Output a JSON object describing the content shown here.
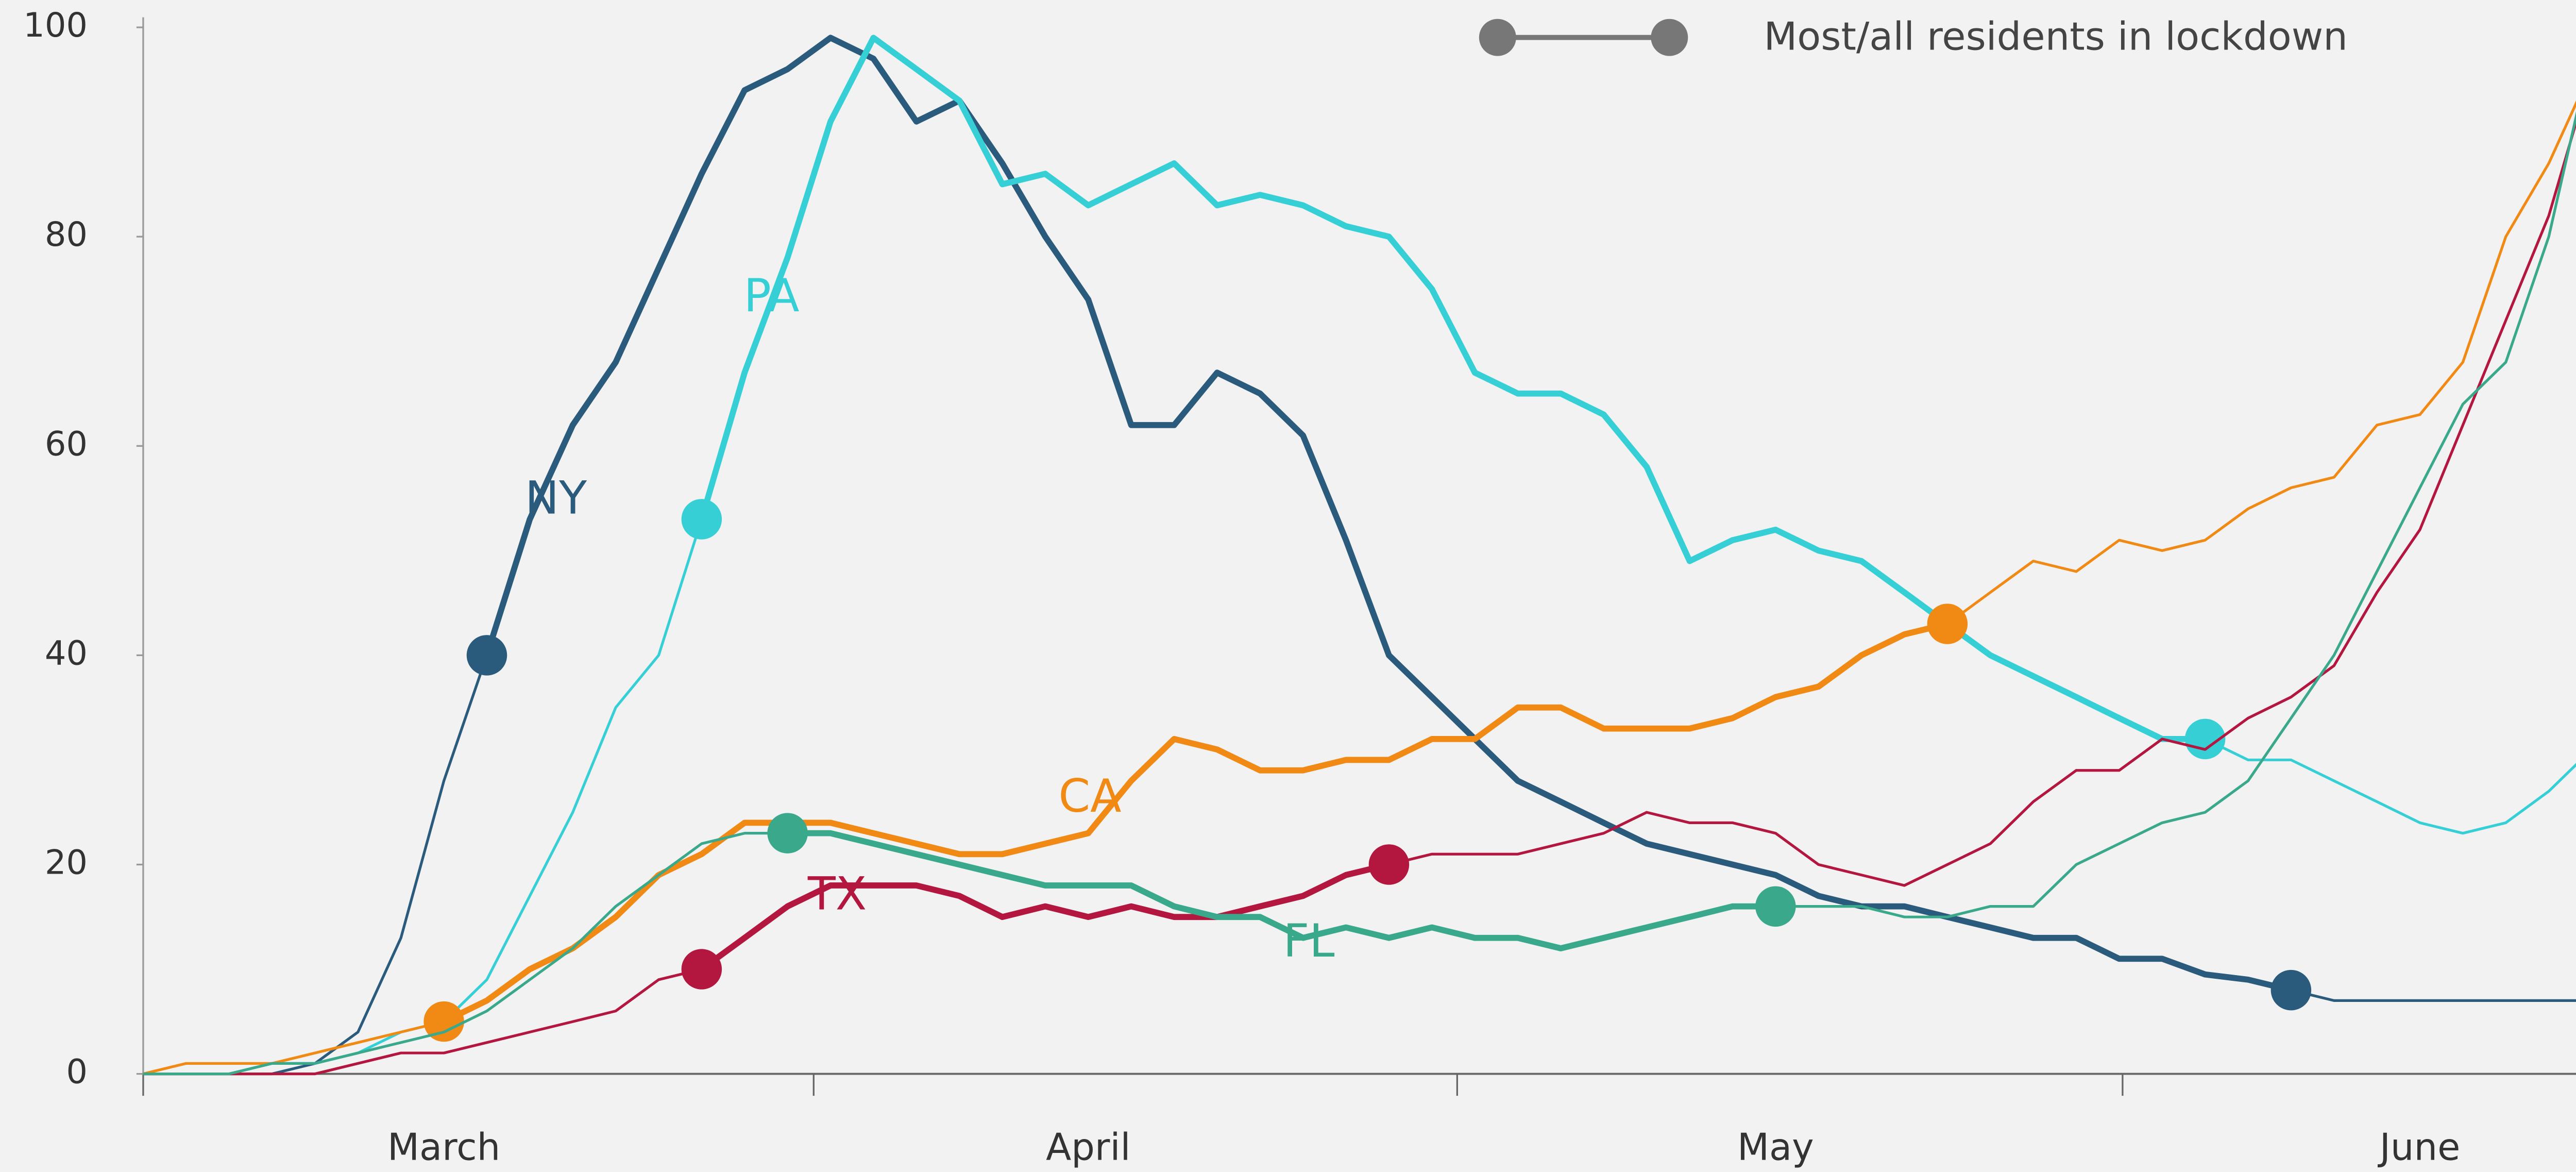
{
  "chart_data": {
    "type": "line",
    "categories": [
      null,
      null,
      null,
      null,
      null,
      null,
      null,
      "March",
      null,
      null,
      null,
      null,
      null,
      null,
      null,
      null,
      null,
      null,
      null,
      null,
      null,
      null,
      "April",
      null,
      null,
      null,
      null,
      null,
      null,
      null,
      null,
      null,
      null,
      null,
      null,
      null,
      null,
      null,
      "May",
      null,
      null,
      null,
      null,
      null,
      null,
      null,
      null,
      null,
      null,
      null,
      null,
      null,
      null,
      "June",
      null,
      null,
      null,
      null,
      null
    ],
    "ylim": [
      0,
      100
    ],
    "yticks": [
      0,
      20,
      40,
      60,
      80,
      100
    ],
    "legend": "Most/all residents in lockdown",
    "series": [
      {
        "name": "NY",
        "color": "#2a5a7c",
        "lockdown": [
          8,
          50
        ],
        "values": [
          0,
          0,
          0,
          0,
          1,
          4,
          13,
          28,
          40,
          53,
          62,
          68,
          77,
          86,
          94,
          96,
          99,
          97,
          91,
          93,
          87,
          80,
          74,
          62,
          62,
          67,
          65,
          61,
          51,
          40,
          36,
          32,
          28,
          26,
          24,
          22,
          21,
          20,
          19,
          17,
          16,
          16,
          15,
          14,
          13,
          13,
          11,
          11,
          9.5,
          9,
          8,
          7,
          7,
          7,
          7,
          7,
          7,
          7,
          7
        ]
      },
      {
        "name": "PA",
        "color": "#36cfd6",
        "lockdown": [
          13,
          48
        ],
        "values": [
          0,
          0,
          0,
          1,
          1,
          2,
          4,
          5,
          9,
          17,
          25,
          35,
          40,
          53,
          67,
          78,
          91,
          99,
          96,
          93,
          85,
          86,
          83,
          85,
          87,
          83,
          84,
          83,
          81,
          80,
          75,
          67,
          65,
          65,
          63,
          58,
          49,
          51,
          52,
          50,
          49,
          46,
          43,
          40,
          38,
          36,
          34,
          32,
          32,
          30,
          30,
          28,
          26,
          24,
          23,
          24,
          27,
          31,
          32
        ]
      },
      {
        "name": "CA",
        "color": "#f08a15",
        "lockdown": [
          7,
          42
        ],
        "values": [
          0,
          1,
          1,
          1,
          2,
          3,
          4,
          5,
          7,
          10,
          12,
          15,
          19,
          21,
          24,
          24,
          24,
          23,
          22,
          21,
          21,
          22,
          23,
          28,
          32,
          31,
          29,
          29,
          30,
          30,
          32,
          32,
          35,
          35,
          33,
          33,
          33,
          34,
          36,
          37,
          40,
          42,
          43,
          46,
          49,
          48,
          51,
          50,
          51,
          54,
          56,
          57,
          62,
          63,
          68,
          80,
          87,
          96,
          100
        ]
      },
      {
        "name": "TX",
        "color": "#b3163e",
        "lockdown": [
          13,
          29
        ],
        "values": [
          0,
          0,
          0,
          0,
          0,
          1,
          2,
          2,
          3,
          4,
          5,
          6,
          9,
          10,
          13,
          16,
          18,
          18,
          18,
          17,
          15,
          16,
          15,
          16,
          15,
          15,
          16,
          17,
          19,
          20,
          21,
          21,
          21,
          22,
          23,
          25,
          24,
          24,
          23,
          20,
          19,
          18,
          20,
          22,
          26,
          29,
          29,
          32,
          31,
          34,
          36,
          39,
          46,
          52,
          62,
          72,
          82,
          96,
          100
        ]
      },
      {
        "name": "FL",
        "color": "#3aa88a",
        "lockdown": [
          15,
          38
        ],
        "values": [
          0,
          0,
          0,
          1,
          1,
          2,
          3,
          4,
          6,
          9,
          12,
          16,
          19,
          22,
          23,
          23,
          23,
          22,
          21,
          20,
          19,
          18,
          18,
          18,
          16,
          15,
          15,
          13,
          14,
          13,
          14,
          13,
          13,
          12,
          13,
          14,
          15,
          16,
          16,
          16,
          16,
          15,
          15,
          16,
          16,
          20,
          22,
          24,
          25,
          28,
          34,
          40,
          48,
          56,
          64,
          68,
          80,
          98,
          100
        ]
      }
    ]
  }
}
